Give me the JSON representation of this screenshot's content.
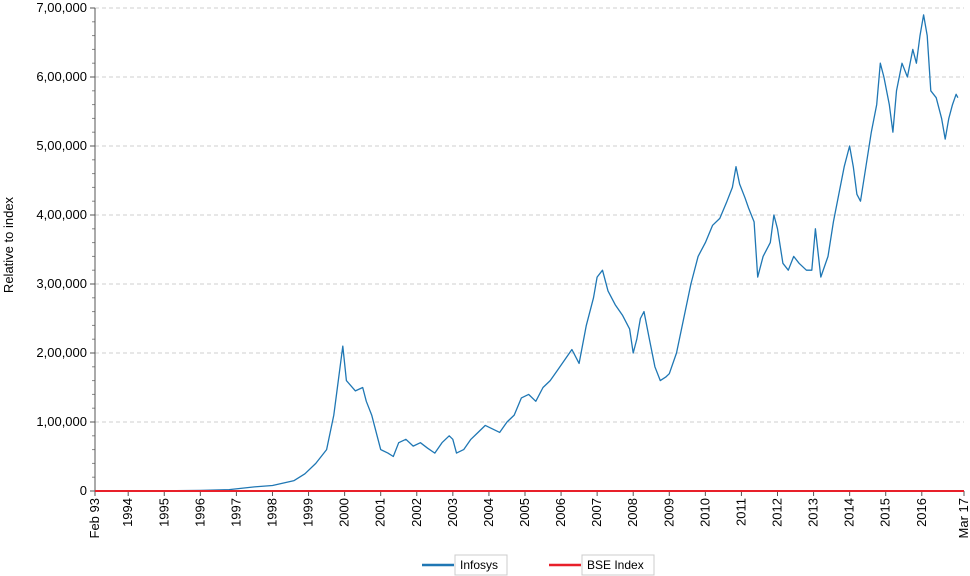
{
  "chart_data": {
    "type": "line",
    "title": "",
    "xlabel": "",
    "ylabel": "Relative to index",
    "ylim": [
      0,
      700000
    ],
    "y_ticks": [
      "0",
      "1,00,000",
      "2,00,000",
      "3,00,000",
      "4,00,000",
      "5,00,000",
      "6,00,000",
      "7,00,000"
    ],
    "x_ticks": [
      "Feb 93",
      "1994",
      "1995",
      "1996",
      "1997",
      "1998",
      "1999",
      "2000",
      "2001",
      "2002",
      "2003",
      "2004",
      "2005",
      "2006",
      "2007",
      "2008",
      "2009",
      "2010",
      "2011",
      "2012",
      "2013",
      "2014",
      "2015",
      "2016",
      "Mar 17"
    ],
    "grid": "horizontal dashed",
    "legend_position": "bottom",
    "series": [
      {
        "name": "Infosys",
        "color": "#1f77b4",
        "points": [
          [
            1993.08,
            0
          ],
          [
            1995.0,
            300
          ],
          [
            1996.0,
            800
          ],
          [
            1996.8,
            2000
          ],
          [
            1997.5,
            6000
          ],
          [
            1998.0,
            8000
          ],
          [
            1998.6,
            15000
          ],
          [
            1998.9,
            25000
          ],
          [
            1999.2,
            40000
          ],
          [
            1999.5,
            60000
          ],
          [
            1999.7,
            110000
          ],
          [
            1999.8,
            150000
          ],
          [
            1999.95,
            210000
          ],
          [
            2000.05,
            160000
          ],
          [
            2000.3,
            145000
          ],
          [
            2000.5,
            150000
          ],
          [
            2000.6,
            130000
          ],
          [
            2000.75,
            110000
          ],
          [
            2000.9,
            80000
          ],
          [
            2001.0,
            60000
          ],
          [
            2001.2,
            55000
          ],
          [
            2001.35,
            50000
          ],
          [
            2001.5,
            70000
          ],
          [
            2001.7,
            75000
          ],
          [
            2001.9,
            65000
          ],
          [
            2002.1,
            70000
          ],
          [
            2002.3,
            62000
          ],
          [
            2002.5,
            55000
          ],
          [
            2002.7,
            70000
          ],
          [
            2002.9,
            80000
          ],
          [
            2003.0,
            75000
          ],
          [
            2003.1,
            55000
          ],
          [
            2003.3,
            60000
          ],
          [
            2003.5,
            75000
          ],
          [
            2003.7,
            85000
          ],
          [
            2003.9,
            95000
          ],
          [
            2004.1,
            90000
          ],
          [
            2004.3,
            85000
          ],
          [
            2004.5,
            100000
          ],
          [
            2004.7,
            110000
          ],
          [
            2004.9,
            135000
          ],
          [
            2005.1,
            140000
          ],
          [
            2005.3,
            130000
          ],
          [
            2005.5,
            150000
          ],
          [
            2005.7,
            160000
          ],
          [
            2005.9,
            175000
          ],
          [
            2006.1,
            190000
          ],
          [
            2006.3,
            205000
          ],
          [
            2006.5,
            185000
          ],
          [
            2006.7,
            240000
          ],
          [
            2006.9,
            280000
          ],
          [
            2007.0,
            310000
          ],
          [
            2007.15,
            320000
          ],
          [
            2007.3,
            290000
          ],
          [
            2007.5,
            270000
          ],
          [
            2007.7,
            255000
          ],
          [
            2007.9,
            235000
          ],
          [
            2008.0,
            200000
          ],
          [
            2008.1,
            220000
          ],
          [
            2008.2,
            250000
          ],
          [
            2008.3,
            260000
          ],
          [
            2008.45,
            220000
          ],
          [
            2008.6,
            180000
          ],
          [
            2008.75,
            160000
          ],
          [
            2008.9,
            165000
          ],
          [
            2009.0,
            170000
          ],
          [
            2009.2,
            200000
          ],
          [
            2009.4,
            250000
          ],
          [
            2009.6,
            300000
          ],
          [
            2009.8,
            340000
          ],
          [
            2010.0,
            360000
          ],
          [
            2010.2,
            385000
          ],
          [
            2010.4,
            395000
          ],
          [
            2010.6,
            420000
          ],
          [
            2010.75,
            440000
          ],
          [
            2010.85,
            470000
          ],
          [
            2010.95,
            445000
          ],
          [
            2011.1,
            425000
          ],
          [
            2011.2,
            410000
          ],
          [
            2011.35,
            390000
          ],
          [
            2011.45,
            310000
          ],
          [
            2011.6,
            340000
          ],
          [
            2011.8,
            360000
          ],
          [
            2011.9,
            400000
          ],
          [
            2012.0,
            380000
          ],
          [
            2012.15,
            330000
          ],
          [
            2012.3,
            320000
          ],
          [
            2012.45,
            340000
          ],
          [
            2012.6,
            330000
          ],
          [
            2012.8,
            320000
          ],
          [
            2012.95,
            320000
          ],
          [
            2013.05,
            380000
          ],
          [
            2013.2,
            310000
          ],
          [
            2013.4,
            340000
          ],
          [
            2013.55,
            390000
          ],
          [
            2013.7,
            430000
          ],
          [
            2013.85,
            470000
          ],
          [
            2014.0,
            500000
          ],
          [
            2014.1,
            470000
          ],
          [
            2014.2,
            430000
          ],
          [
            2014.3,
            420000
          ],
          [
            2014.45,
            470000
          ],
          [
            2014.6,
            520000
          ],
          [
            2014.75,
            560000
          ],
          [
            2014.85,
            620000
          ],
          [
            2014.95,
            600000
          ],
          [
            2015.1,
            560000
          ],
          [
            2015.2,
            520000
          ],
          [
            2015.3,
            580000
          ],
          [
            2015.45,
            620000
          ],
          [
            2015.6,
            600000
          ],
          [
            2015.75,
            640000
          ],
          [
            2015.85,
            620000
          ],
          [
            2015.95,
            660000
          ],
          [
            2016.05,
            690000
          ],
          [
            2016.15,
            660000
          ],
          [
            2016.25,
            580000
          ],
          [
            2016.4,
            570000
          ],
          [
            2016.55,
            540000
          ],
          [
            2016.65,
            510000
          ],
          [
            2016.75,
            540000
          ],
          [
            2016.85,
            560000
          ],
          [
            2016.95,
            575000
          ],
          [
            2017.0,
            570000
          ]
        ]
      },
      {
        "name": "BSE Index",
        "color": "#e8202a",
        "points": [
          [
            1993.08,
            0
          ],
          [
            2017.17,
            0
          ]
        ]
      }
    ]
  }
}
